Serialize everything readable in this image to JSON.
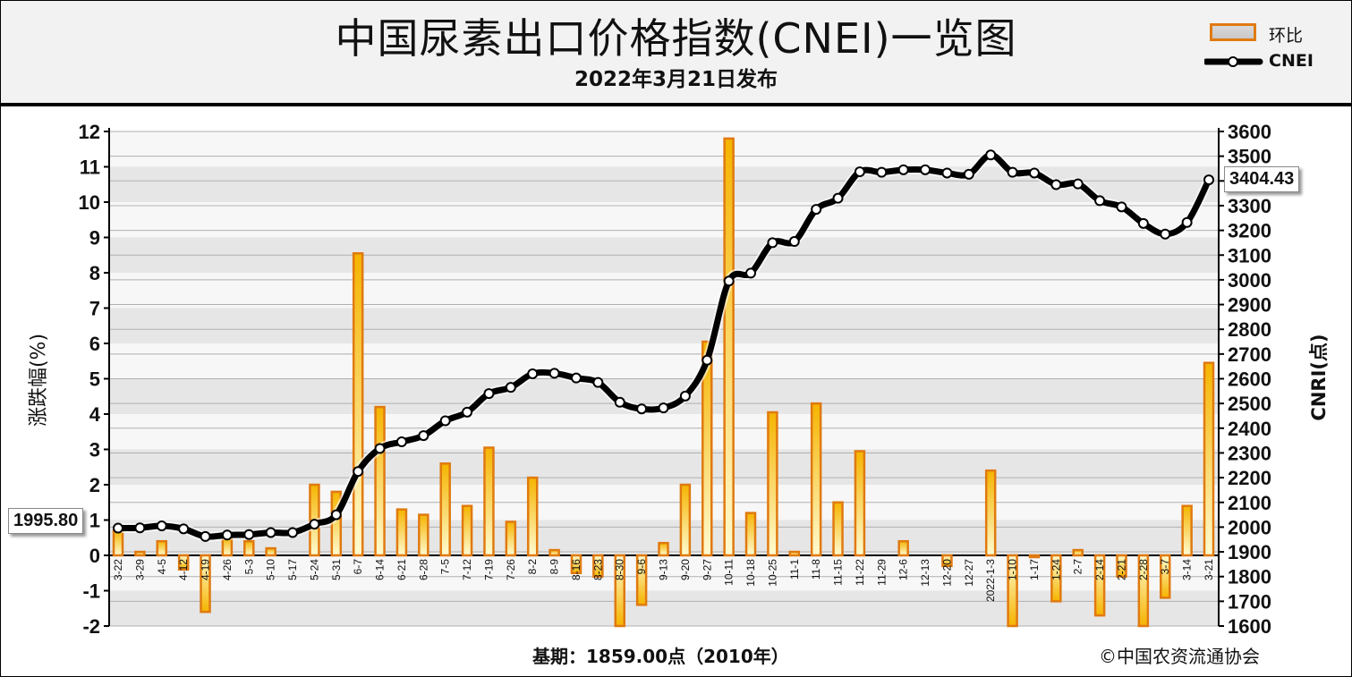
{
  "header": {
    "title": "中国尿素出口价格指数(CNEI)一览图",
    "subtitle": "2022年3月21日发布"
  },
  "legend": {
    "bar_label": "环比",
    "line_label": "CNEI"
  },
  "footer": {
    "base": "基期：1859.00点（2010年）",
    "copyright": "©中国农资流通协会"
  },
  "callouts": {
    "start_value": "1995.80",
    "end_value": "3404.43"
  },
  "colors": {
    "bar_fill_top": "#f5b400",
    "bar_fill_bottom": "#fffbd0",
    "bar_border": "#e07a10",
    "line": "#000000",
    "marker_fill": "#ffffff",
    "grid_band": "#e6e6e6",
    "grid_line": "#b0b0b0"
  },
  "chart_data": {
    "type": "bar+line",
    "categories": [
      "3-22",
      "3-29",
      "4-5",
      "4-12",
      "4-19",
      "4-26",
      "5-3",
      "5-10",
      "5-17",
      "5-24",
      "5-31",
      "6-7",
      "6-14",
      "6-21",
      "6-28",
      "7-5",
      "7-12",
      "7-19",
      "7-26",
      "8-2",
      "8-9",
      "8-16",
      "8-23",
      "8-30",
      "9-6",
      "9-13",
      "9-20",
      "9-27",
      "10-11",
      "10-18",
      "10-25",
      "11-1",
      "11-8",
      "11-15",
      "11-22",
      "11-29",
      "12-6",
      "12-13",
      "12-20",
      "12-27",
      "2022-1-3",
      "1-10",
      "1-17",
      "1-24",
      "2-7",
      "2-14",
      "2-21",
      "2-28",
      "3-7",
      "3-14",
      "3-21"
    ],
    "left_axis": {
      "label": "涨跌幅(%)",
      "ylim": [
        -2,
        12
      ],
      "ticks": [
        -2,
        -1,
        0,
        1,
        2,
        3,
        4,
        5,
        6,
        7,
        8,
        9,
        10,
        11,
        12
      ]
    },
    "right_axis": {
      "label": "CNRI(点)",
      "ylim": [
        1600,
        3600
      ],
      "ticks": [
        1600,
        1700,
        1800,
        1900,
        2000,
        2100,
        2200,
        2300,
        2400,
        2500,
        2600,
        2700,
        2800,
        2900,
        3000,
        3100,
        3200,
        3300,
        3400,
        3500,
        3600
      ]
    },
    "series": [
      {
        "name": "环比",
        "type": "bar",
        "axis": "left",
        "values": [
          0.7,
          0.1,
          0.4,
          -0.4,
          -1.6,
          0.5,
          0.4,
          0.2,
          0.0,
          2.0,
          1.8,
          8.55,
          4.2,
          1.3,
          1.15,
          2.6,
          1.4,
          3.05,
          0.95,
          2.2,
          0.15,
          -0.5,
          -0.6,
          -2.0,
          -1.4,
          0.35,
          2.0,
          6.05,
          11.8,
          1.2,
          4.05,
          0.1,
          4.3,
          1.5,
          2.95,
          0.0,
          0.4,
          0.0,
          -0.3,
          0.0,
          2.4,
          -2.0,
          -0.05,
          -1.3,
          0.15,
          -1.7,
          -0.6,
          -2.0,
          -1.2,
          1.4,
          5.45
        ]
      },
      {
        "name": "CNEI",
        "type": "line",
        "axis": "right",
        "values": [
          1995.8,
          1997,
          2005,
          1993,
          1962,
          1968,
          1970,
          1978,
          1978,
          2012,
          2050,
          2225,
          2318,
          2345,
          2370,
          2430,
          2465,
          2540,
          2565,
          2620,
          2622,
          2603,
          2585,
          2505,
          2478,
          2482,
          2530,
          2675,
          2995,
          3027,
          3150,
          3155,
          3285,
          3330,
          3437,
          3435,
          3445,
          3445,
          3432,
          3427,
          3505,
          3435,
          3432,
          3385,
          3388,
          3320,
          3295,
          3228,
          3185,
          3232,
          3404.43
        ]
      }
    ]
  }
}
